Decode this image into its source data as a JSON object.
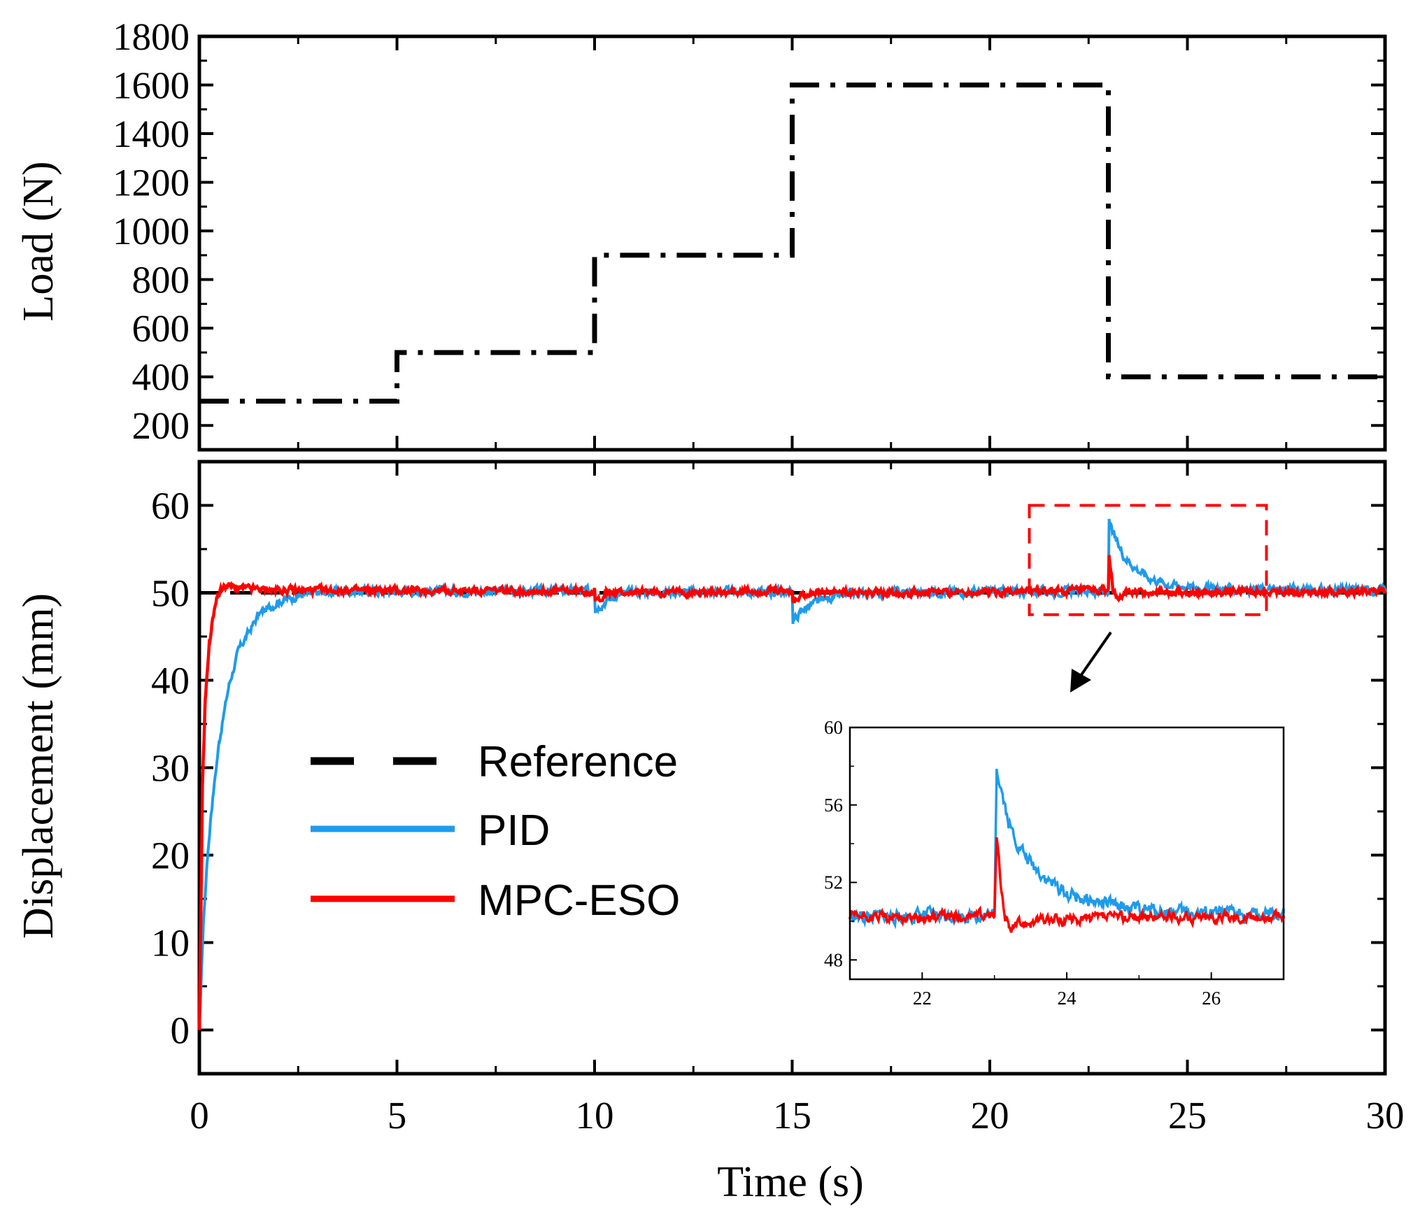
{
  "colors": {
    "reference": "#000000",
    "pid": "#1E9BEB",
    "mpc_eso": "#FF0000",
    "load": "#000000",
    "zoom_box": "#FF0000",
    "axes": "#000000"
  },
  "chart_data": [
    {
      "type": "line",
      "name": "load-panel",
      "title": "",
      "xlabel": "",
      "ylabel": "Load (N)",
      "xlim": [
        0,
        30
      ],
      "ylim": [
        100,
        1800
      ],
      "xticks": [
        0,
        5,
        10,
        15,
        20,
        25,
        30
      ],
      "yticks": [
        200,
        400,
        600,
        800,
        1000,
        1200,
        1400,
        1600,
        1800
      ],
      "ytick_labels": [
        "200",
        "400",
        "600",
        "800",
        "1000",
        "1200",
        "1400",
        "1600",
        "1800"
      ],
      "series": [
        {
          "name": "Load",
          "style": "dash-dot",
          "x": [
            0,
            5,
            5,
            10,
            10,
            15,
            15,
            23,
            23,
            30
          ],
          "y": [
            300,
            300,
            500,
            500,
            900,
            900,
            1600,
            1600,
            400,
            400
          ]
        }
      ]
    },
    {
      "type": "line",
      "name": "displacement-panel",
      "title": "",
      "xlabel": "Time (s)",
      "ylabel": "Displacement (mm)",
      "xlim": [
        0,
        30
      ],
      "ylim": [
        -5,
        65
      ],
      "xticks": [
        0,
        5,
        10,
        15,
        20,
        25,
        30
      ],
      "xtick_labels": [
        "0",
        "5",
        "10",
        "15",
        "20",
        "25",
        "30"
      ],
      "yticks": [
        0,
        10,
        20,
        30,
        40,
        50,
        60
      ],
      "ytick_labels": [
        "0",
        "10",
        "20",
        "30",
        "40",
        "50",
        "60"
      ],
      "legend": {
        "placement": "lower-left",
        "entries": [
          "Reference",
          "PID",
          "MPC-ESO"
        ]
      },
      "series": [
        {
          "name": "Reference",
          "style": "dashed",
          "x": [
            0,
            30
          ],
          "y": [
            50,
            50
          ]
        },
        {
          "name": "PID",
          "style": "solid",
          "x": [
            0,
            0.1,
            0.2,
            0.3,
            0.5,
            0.75,
            1.0,
            1.5,
            2.0,
            2.5,
            3.0,
            4.0,
            5.0,
            10.0,
            10.02,
            10.5,
            11.0,
            15.0,
            15.02,
            15.3,
            15.8,
            16.5,
            17.5,
            23.0,
            23.02,
            23.2,
            23.4,
            23.7,
            24.0,
            24.5,
            25.0,
            26.0,
            30.0
          ],
          "y": [
            0,
            12,
            19.5,
            25,
            33,
            39.5,
            43.5,
            47.5,
            49,
            49.7,
            50,
            50.2,
            50.2,
            50.2,
            48.3,
            49.6,
            50.1,
            50.1,
            46.8,
            48.2,
            49.3,
            49.8,
            50.1,
            50.2,
            58.0,
            55.8,
            54.2,
            52.8,
            51.8,
            51.0,
            50.7,
            50.4,
            50.3
          ]
        },
        {
          "name": "MPC-ESO",
          "style": "solid",
          "x": [
            0,
            0.08,
            0.15,
            0.25,
            0.35,
            0.45,
            0.55,
            0.7,
            1.0,
            2.0,
            10.0,
            10.02,
            10.3,
            15.0,
            15.02,
            15.3,
            23.0,
            23.02,
            23.08,
            23.12,
            23.2,
            23.4,
            30.0
          ],
          "y": [
            0,
            28,
            38,
            44,
            47.5,
            49.5,
            50.4,
            50.8,
            50.5,
            50.3,
            50.2,
            49.0,
            50.0,
            50.2,
            48.9,
            50.0,
            50.2,
            54.2,
            52.0,
            50.2,
            49.6,
            50.0,
            50.2
          ]
        }
      ],
      "zoom_region": {
        "xlim": [
          21,
          27
        ],
        "ylim": [
          47.5,
          60
        ]
      }
    },
    {
      "type": "line",
      "name": "inset-zoom",
      "title": "",
      "xlabel": "",
      "ylabel": "",
      "xlim": [
        21,
        27
      ],
      "ylim": [
        47,
        60
      ],
      "xticks": [
        22,
        24,
        26
      ],
      "xtick_labels": [
        "22",
        "24",
        "26"
      ],
      "yticks": [
        48,
        52,
        56,
        60
      ],
      "ytick_labels": [
        "48",
        "52",
        "56",
        "60"
      ],
      "series": [
        {
          "name": "PID",
          "x": [
            21.0,
            22.0,
            23.0,
            23.03,
            23.1,
            23.2,
            23.35,
            23.5,
            23.75,
            24.0,
            24.5,
            25.0,
            26.0,
            27.0
          ],
          "y": [
            50.2,
            50.3,
            50.3,
            58.0,
            56.8,
            55.0,
            53.8,
            53.0,
            52.1,
            51.4,
            50.9,
            50.6,
            50.4,
            50.3
          ]
        },
        {
          "name": "MPC-ESO",
          "x": [
            21.0,
            22.0,
            23.0,
            23.03,
            23.06,
            23.1,
            23.15,
            23.2,
            23.3,
            23.5,
            24.0,
            25.0,
            26.0,
            27.0
          ],
          "y": [
            50.2,
            50.2,
            50.3,
            54.2,
            53.0,
            51.5,
            50.2,
            49.6,
            49.8,
            50.0,
            50.1,
            50.2,
            50.2,
            50.2
          ]
        }
      ]
    }
  ]
}
